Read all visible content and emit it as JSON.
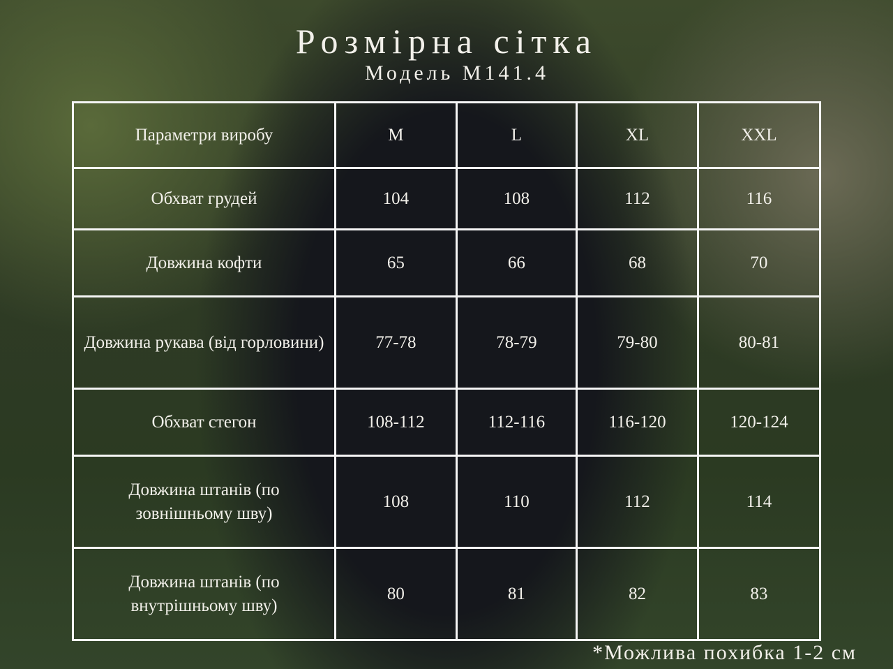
{
  "title": "Розмірна сітка",
  "subtitle": "Модель M141.4",
  "table": {
    "header": [
      "Параметри виробу",
      "M",
      "L",
      "XL",
      "XXL"
    ],
    "rows": [
      [
        "Обхват грудей",
        "104",
        "108",
        "112",
        "116"
      ],
      [
        "Довжина кофти",
        "65",
        "66",
        "68",
        "70"
      ],
      [
        "Довжина рукава (від горловини)",
        "77-78",
        "78-79",
        "79-80",
        "80-81"
      ],
      [
        "Обхват стегон",
        "108-112",
        "112-116",
        "116-120",
        "120-124"
      ],
      [
        "Довжина штанів (по зовнішньому шву)",
        "108",
        "110",
        "112",
        "114"
      ],
      [
        "Довжина штанів (по внутрішньому шву)",
        "80",
        "81",
        "82",
        "83"
      ]
    ]
  },
  "note": "*Можлива похибка 1-2 см"
}
